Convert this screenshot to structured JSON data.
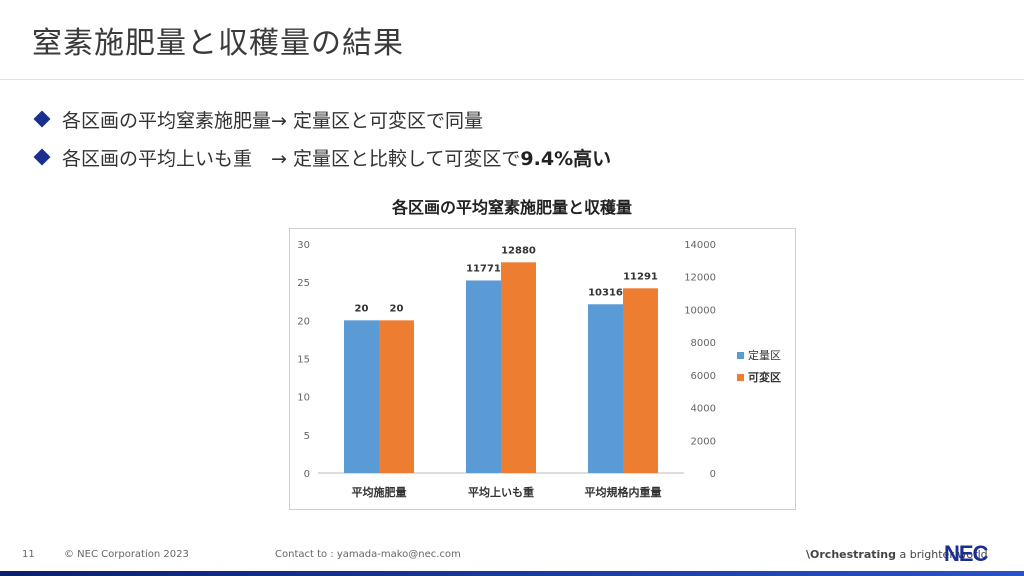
{
  "slide": {
    "title": "窒素施肥量と収穫量の結果",
    "bullets": [
      {
        "text": "各区画の平均窒素施肥量→ 定量区と可変区で同量",
        "bold": ""
      },
      {
        "text": "各区画の平均上いも重　→ 定量区と比較して可変区で",
        "bold": "9.4%高い"
      }
    ],
    "colors": {
      "accent": "#1a2f8f",
      "series1": "#5b9bd5",
      "series2": "#ed7d31"
    }
  },
  "chart_data": {
    "type": "bar",
    "title": "各区画の平均窒素施肥量と収穫量",
    "categories": [
      "平均施肥量",
      "平均上いも重",
      "平均規格内重量"
    ],
    "series": [
      {
        "name": "定量区",
        "values": [
          20,
          11771,
          10316
        ],
        "labels": [
          "20",
          "11771",
          "10316"
        ],
        "axis": [
          "left",
          "right",
          "right"
        ]
      },
      {
        "name": "可変区",
        "values": [
          20,
          12880,
          11291
        ],
        "labels": [
          "20",
          "12880",
          "11291"
        ],
        "axis": [
          "left",
          "right",
          "right"
        ]
      }
    ],
    "y_left": {
      "min": 0,
      "max": 30,
      "ticks": [
        "0",
        "5",
        "10",
        "15",
        "20",
        "25",
        "30"
      ]
    },
    "y_right": {
      "min": 0,
      "max": 14000,
      "ticks": [
        "0",
        "2000",
        "4000",
        "6000",
        "8000",
        "10000",
        "12000",
        "14000"
      ]
    },
    "legend_position": "right",
    "grid": false
  },
  "footer": {
    "page": "11",
    "copyright": "© NEC Corporation 2023",
    "contact": "Contact to : yamada-mako@nec.com",
    "slogan_bold": "\\Orchestrating",
    "slogan_rest": " a brighter world",
    "logo": "NEC"
  }
}
